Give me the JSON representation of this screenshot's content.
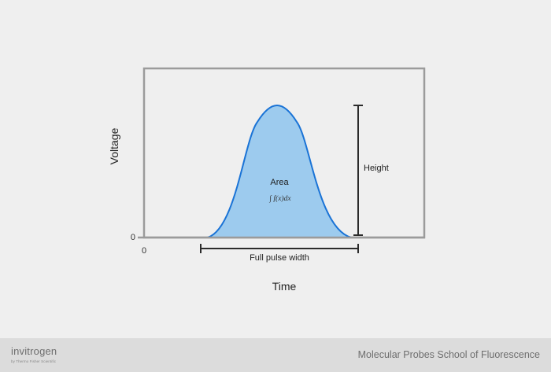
{
  "diagram": {
    "y_axis_label": "Voltage",
    "x_axis_label": "Time",
    "y_zero_label": "0",
    "x_zero_label": "0",
    "area_label": "Area",
    "area_formula": "∫ f(x)dx",
    "height_label": "Height",
    "width_label": "Full pulse width",
    "colors": {
      "pulse_fill": "#9dcbee",
      "pulse_stroke": "#1a73d6",
      "frame": "#9b9b9b",
      "dimension_lines": "#2b2b2b"
    }
  },
  "footer": {
    "brand": "invitrogen",
    "brand_sub": "by Thermo Fisher Scientific",
    "course": "Molecular Probes School of Fluorescence"
  }
}
